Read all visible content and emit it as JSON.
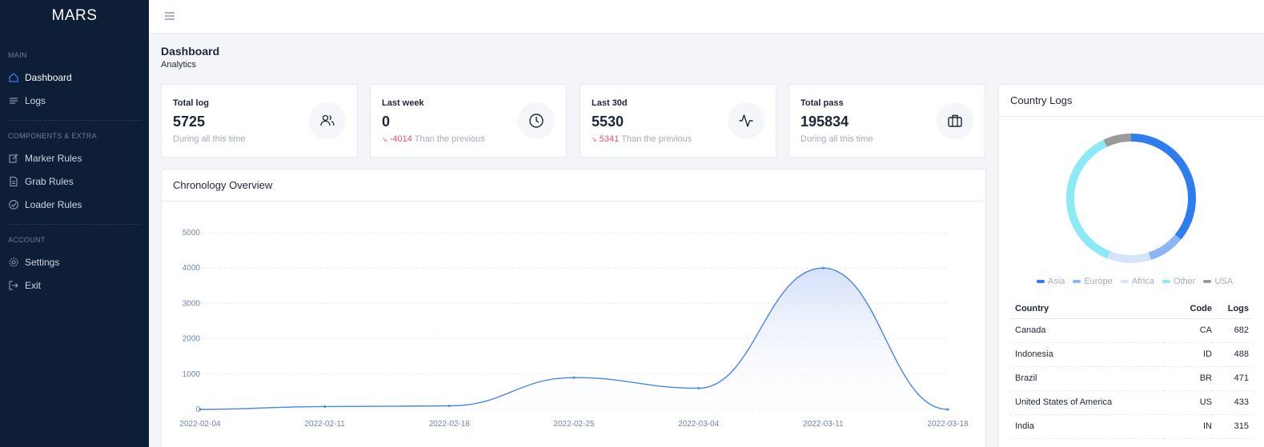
{
  "brand": "MARS",
  "sidebar": {
    "sections": [
      {
        "title": "MAIN",
        "items": [
          {
            "label": "Dashboard",
            "icon": "home-icon",
            "active": true
          },
          {
            "label": "Logs",
            "icon": "list-icon"
          }
        ]
      },
      {
        "title": "COMPONENTS & EXTRA",
        "items": [
          {
            "label": "Marker Rules",
            "icon": "edit-icon"
          },
          {
            "label": "Grab Rules",
            "icon": "file-icon"
          },
          {
            "label": "Loader Rules",
            "icon": "check-circle-icon"
          }
        ]
      },
      {
        "title": "ACCOUNT",
        "items": [
          {
            "label": "Settings",
            "icon": "gear-icon"
          },
          {
            "label": "Exit",
            "icon": "logout-icon"
          }
        ]
      }
    ]
  },
  "page": {
    "title": "Dashboard",
    "subtitle": "Analytics"
  },
  "stats": [
    {
      "label": "Total log",
      "value": "5725",
      "foot_change": "",
      "foot_text": "During all this time",
      "icon": "users-icon"
    },
    {
      "label": "Last week",
      "value": "0",
      "foot_change": "-4014",
      "foot_text": "Than the previous",
      "icon": "clock-icon"
    },
    {
      "label": "Last 30d",
      "value": "5530",
      "foot_change": "5341",
      "foot_text": "Than the previous",
      "icon": "activity-icon"
    },
    {
      "label": "Total pass",
      "value": "195834",
      "foot_change": "",
      "foot_text": "During all this time",
      "icon": "briefcase-icon"
    }
  ],
  "chronology": {
    "title": "Chronology Overview",
    "chart_data": {
      "type": "area",
      "x": [
        "2022-02-04",
        "2022-02-11",
        "2022-02-18",
        "2022-02-25",
        "2022-03-04",
        "2022-03-11",
        "2022-03-18"
      ],
      "values": [
        0,
        80,
        100,
        900,
        600,
        4000,
        0
      ],
      "yticks": [
        0,
        1000,
        2000,
        3000,
        4000,
        5000
      ],
      "ylim": [
        0,
        5000
      ],
      "color": "#4b84e6",
      "grid": true
    }
  },
  "country": {
    "title": "Country Logs",
    "chart_data": {
      "type": "pie",
      "categories": [
        "Asia",
        "Europe",
        "Africa",
        "Other",
        "USA"
      ],
      "values": [
        36,
        9,
        11,
        37,
        7
      ],
      "colors": [
        "#2f7cf0",
        "#8db4f4",
        "#d6e4fa",
        "#8ce9f6",
        "#9a9a9a"
      ]
    },
    "columns": {
      "country": "Country",
      "code": "Code",
      "logs": "Logs"
    },
    "rows": [
      {
        "country": "Canada",
        "code": "CA",
        "logs": "682"
      },
      {
        "country": "Indonesia",
        "code": "ID",
        "logs": "488"
      },
      {
        "country": "Brazil",
        "code": "BR",
        "logs": "471"
      },
      {
        "country": "United States of America",
        "code": "US",
        "logs": "433"
      },
      {
        "country": "India",
        "code": "IN",
        "logs": "315"
      }
    ]
  },
  "colors": {
    "sidebar_bg": "#0e1e36",
    "accent": "#2f7cf0",
    "negative": "#e4526b"
  }
}
